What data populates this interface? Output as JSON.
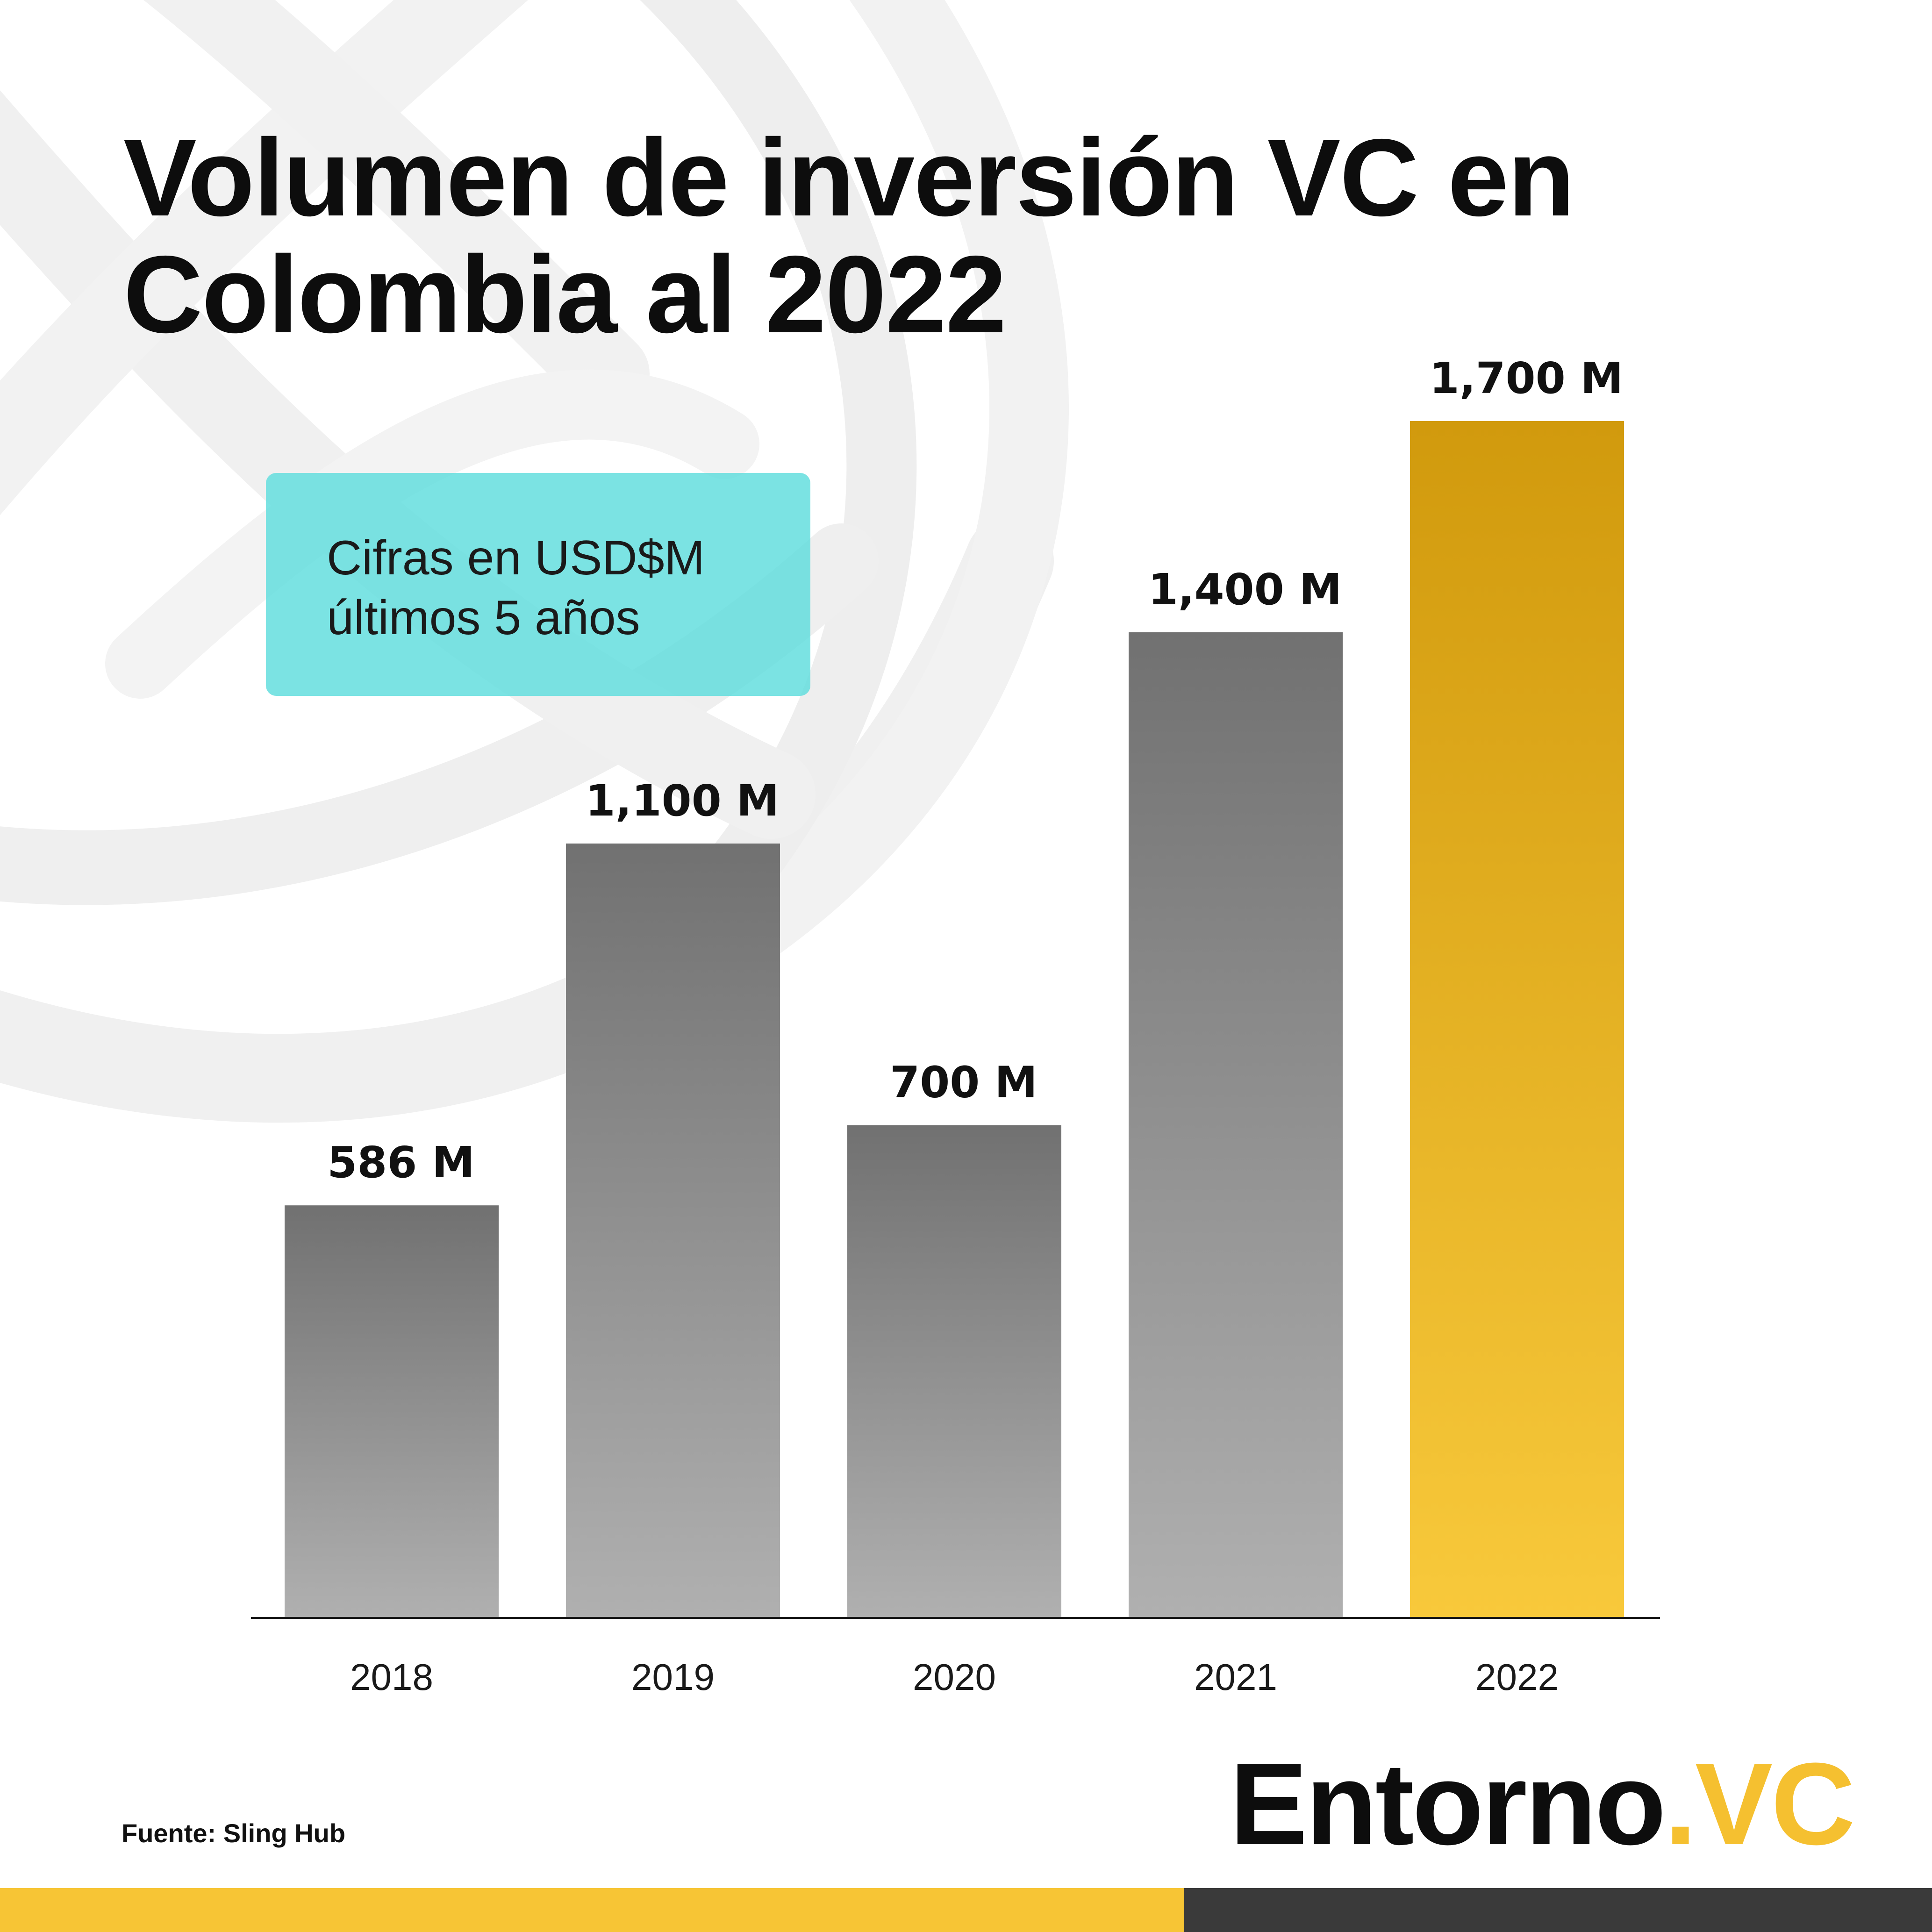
{
  "title_lines": [
    "Volumen de inversión VC en",
    "Colombia al 2022"
  ],
  "note_lines": [
    "Cifras en USD$M",
    "últimos 5 años"
  ],
  "source": "Fuente: Sling Hub",
  "logo": {
    "main": "Entorno",
    "accent": ".VC"
  },
  "colors": {
    "bar_gray_top": "#717171",
    "bar_gray_bottom": "#b0b0b0",
    "bar_gold_top": "#d19a0d",
    "bar_gold_bottom": "#f8c93b",
    "note_box": "#6be0e0",
    "footer_yellow": "#f7c535",
    "footer_dark": "#3a3a3a"
  },
  "chart_data": {
    "type": "bar",
    "categories": [
      "2018",
      "2019",
      "2020",
      "2021",
      "2022"
    ],
    "values": [
      586,
      1100,
      700,
      1400,
      1700
    ],
    "value_labels": [
      "586 M",
      "1,100 M",
      "700 M",
      "1,400 M",
      "1,700 M"
    ],
    "highlight": "2022",
    "ylim": [
      0,
      1700
    ],
    "grid": false,
    "legend": "none"
  }
}
